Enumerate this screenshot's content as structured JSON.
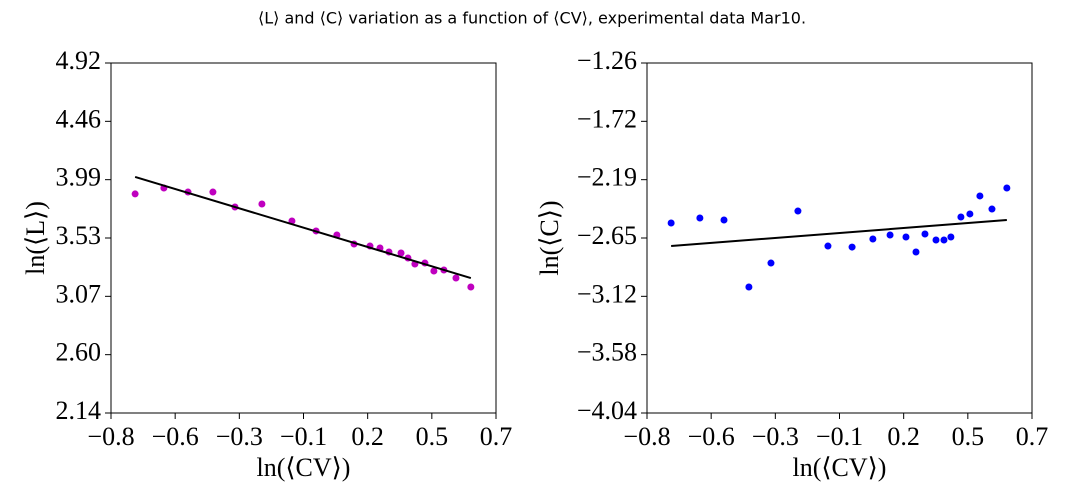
{
  "title": "⟨L⟩ and ⟨C⟩ variation as a function of ⟨CV⟩, experimental data Mar10.",
  "chart_data": [
    {
      "type": "scatter",
      "xlabel": "ln(⟨CV⟩)",
      "ylabel": "ln(⟨L⟩)",
      "xlim": [
        -0.8,
        0.7
      ],
      "xticks": [
        {
          "value": -0.8,
          "label": "−0.8"
        },
        {
          "value": -0.55,
          "label": "−0.6"
        },
        {
          "value": -0.3,
          "label": "−0.3"
        },
        {
          "value": -0.05,
          "label": "−0.1"
        },
        {
          "value": 0.2,
          "label": "0.2"
        },
        {
          "value": 0.45,
          "label": "0.5"
        },
        {
          "value": 0.7,
          "label": "0.7"
        }
      ],
      "ylim": [
        2.14,
        4.92
      ],
      "yticks": [
        {
          "value": 2.14,
          "label": "2.14"
        },
        {
          "value": 2.6033,
          "label": "2.60"
        },
        {
          "value": 3.0667,
          "label": "3.07"
        },
        {
          "value": 3.53,
          "label": "3.53"
        },
        {
          "value": 3.9933,
          "label": "3.99"
        },
        {
          "value": 4.4567,
          "label": "4.46"
        },
        {
          "value": 4.92,
          "label": "4.92"
        }
      ],
      "series": [
        {
          "type": "scatter",
          "color": "#bf00bf",
          "x": [
            -0.706,
            -0.594,
            -0.5,
            -0.403,
            -0.317,
            -0.212,
            -0.095,
            -0.001,
            0.08,
            0.147,
            0.209,
            0.248,
            0.283,
            0.33,
            0.357,
            0.384,
            0.423,
            0.458,
            0.497,
            0.544,
            0.602
          ],
          "values": [
            3.88,
            3.927,
            3.895,
            3.895,
            3.776,
            3.8,
            3.665,
            3.586,
            3.554,
            3.482,
            3.466,
            3.451,
            3.419,
            3.411,
            3.371,
            3.323,
            3.331,
            3.268,
            3.276,
            3.212,
            3.141
          ]
        },
        {
          "type": "line",
          "color": "#000000",
          "x": [
            -0.706,
            0.602
          ],
          "values": [
            4.015,
            3.212
          ]
        }
      ]
    },
    {
      "type": "scatter",
      "xlabel": "ln(⟨CV⟩)",
      "ylabel": "ln(⟨C⟩)",
      "xlim": [
        -0.8,
        0.7
      ],
      "xticks": [
        {
          "value": -0.8,
          "label": "−0.8"
        },
        {
          "value": -0.55,
          "label": "−0.6"
        },
        {
          "value": -0.3,
          "label": "−0.3"
        },
        {
          "value": -0.05,
          "label": "−0.1"
        },
        {
          "value": 0.2,
          "label": "0.2"
        },
        {
          "value": 0.45,
          "label": "0.5"
        },
        {
          "value": 0.7,
          "label": "0.7"
        }
      ],
      "ylim": [
        -4.04,
        -1.26
      ],
      "yticks": [
        {
          "value": -4.04,
          "label": "−4.04"
        },
        {
          "value": -3.5767,
          "label": "−3.58"
        },
        {
          "value": -3.1133,
          "label": "−3.12"
        },
        {
          "value": -2.65,
          "label": "−2.65"
        },
        {
          "value": -2.1867,
          "label": "−2.19"
        },
        {
          "value": -1.7233,
          "label": "−1.72"
        },
        {
          "value": -1.26,
          "label": "−1.26"
        }
      ],
      "series": [
        {
          "type": "scatter",
          "color": "#0000ff",
          "x": [
            -0.706,
            -0.594,
            -0.5,
            -0.403,
            -0.317,
            -0.212,
            -0.095,
            -0.001,
            0.08,
            0.147,
            0.209,
            0.248,
            0.283,
            0.326,
            0.357,
            0.384,
            0.423,
            0.458,
            0.497,
            0.544,
            0.602
          ],
          "values": [
            -2.531,
            -2.491,
            -2.507,
            -3.039,
            -2.849,
            -2.436,
            -2.714,
            -2.722,
            -2.658,
            -2.626,
            -2.642,
            -2.761,
            -2.618,
            -2.666,
            -2.666,
            -2.642,
            -2.483,
            -2.459,
            -2.316,
            -2.42,
            -2.253
          ]
        },
        {
          "type": "line",
          "color": "#000000",
          "x": [
            -0.706,
            0.602
          ],
          "values": [
            -2.714,
            -2.507
          ]
        }
      ]
    }
  ]
}
